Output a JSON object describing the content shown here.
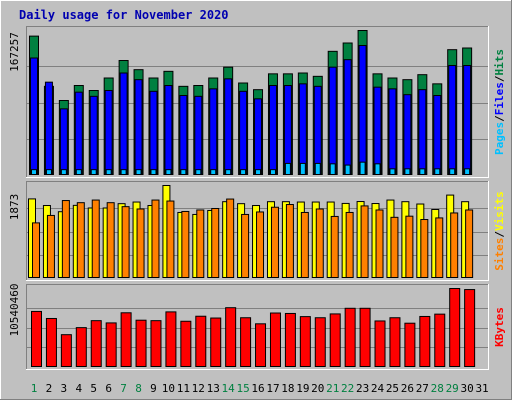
{
  "chart_data": {
    "type": "bar",
    "title": "Daily usage for November 2020",
    "x": [
      "1",
      "2",
      "3",
      "4",
      "5",
      "6",
      "7",
      "8",
      "9",
      "10",
      "11",
      "12",
      "13",
      "14",
      "15",
      "16",
      "17",
      "18",
      "19",
      "20",
      "21",
      "22",
      "23",
      "24",
      "25",
      "26",
      "27",
      "28",
      "29",
      "30",
      "31"
    ],
    "weekend_days": [
      "1",
      "7",
      "8",
      "14",
      "15",
      "21",
      "22",
      "28",
      "29"
    ],
    "legend_separator": "/",
    "panels": [
      {
        "max_label": "167257",
        "grid": true,
        "series": [
          {
            "name": "Hits",
            "color": "#008040",
            "values": [
              167257,
              107000,
              90000,
              108000,
              102000,
              117000,
              138000,
              127000,
              117000,
              125000,
              107000,
              108000,
              117000,
              130000,
              111000,
              103000,
              122000,
              122000,
              123000,
              119000,
              149000,
              159000,
              174000,
              122000,
              117000,
              115000,
              121000,
              110000,
              151000,
              153000,
              0
            ]
          },
          {
            "name": "Files",
            "color": "#0000FF",
            "values": [
              141000,
              112000,
              80000,
              100000,
              95000,
              102000,
              123000,
              115000,
              101000,
              108000,
              96000,
              95000,
              104000,
              116000,
              101000,
              92000,
              108000,
              108000,
              110000,
              107000,
              130000,
              139000,
              156000,
              106000,
              104000,
              97000,
              103000,
              96000,
              132000,
              132000,
              0
            ]
          },
          {
            "name": "Pages",
            "color": "#00C0FF",
            "values": [
              7000,
              7000,
              7000,
              7000,
              7000,
              7000,
              7000,
              7000,
              7000,
              7000,
              7000,
              7000,
              7000,
              7000,
              7000,
              7000,
              7000,
              14500,
              14500,
              14500,
              14000,
              12500,
              16000,
              14000,
              8000,
              8000,
              8000,
              8000,
              8000,
              8000,
              0
            ]
          }
        ]
      },
      {
        "max_label": "1873",
        "grid": true,
        "series": [
          {
            "name": "Visits",
            "color": "#FFFF00",
            "values": [
              1603,
              1470,
              1345,
              1473,
              1420,
              1420,
              1507,
              1540,
              1470,
              1873,
              1330,
              1290,
              1370,
              1547,
              1507,
              1470,
              1547,
              1547,
              1540,
              1540,
              1540,
              1512,
              1550,
              1510,
              1580,
              1547,
              1500,
              1390,
              1680,
              1547,
              0
            ]
          },
          {
            "name": "Sites",
            "color": "#FF8000",
            "values": [
              1120,
              1270,
              1570,
              1527,
              1580,
              1527,
              1447,
              1400,
              1580,
              1560,
              1350,
              1380,
              1410,
              1600,
              1290,
              1340,
              1435,
              1490,
              1330,
              1400,
              1250,
              1330,
              1462,
              1380,
              1232,
              1255,
              1188,
              1220,
              1320,
              1380,
              0
            ]
          }
        ]
      },
      {
        "max_label": "10540460",
        "grid": true,
        "series": [
          {
            "name": "KBytes",
            "color": "#FF0000",
            "values": [
              7480000,
              6540000,
              4380000,
              5320000,
              6250000,
              5950000,
              7300000,
              6310000,
              6250000,
              7420000,
              6170000,
              6840000,
              6600000,
              7980000,
              6640000,
              5830000,
              7270000,
              7210000,
              6790000,
              6640000,
              7150000,
              7900000,
              7900000,
              6210000,
              6640000,
              5910000,
              6810000,
              7120000,
              10540460,
              10400000,
              0
            ]
          }
        ]
      }
    ]
  }
}
